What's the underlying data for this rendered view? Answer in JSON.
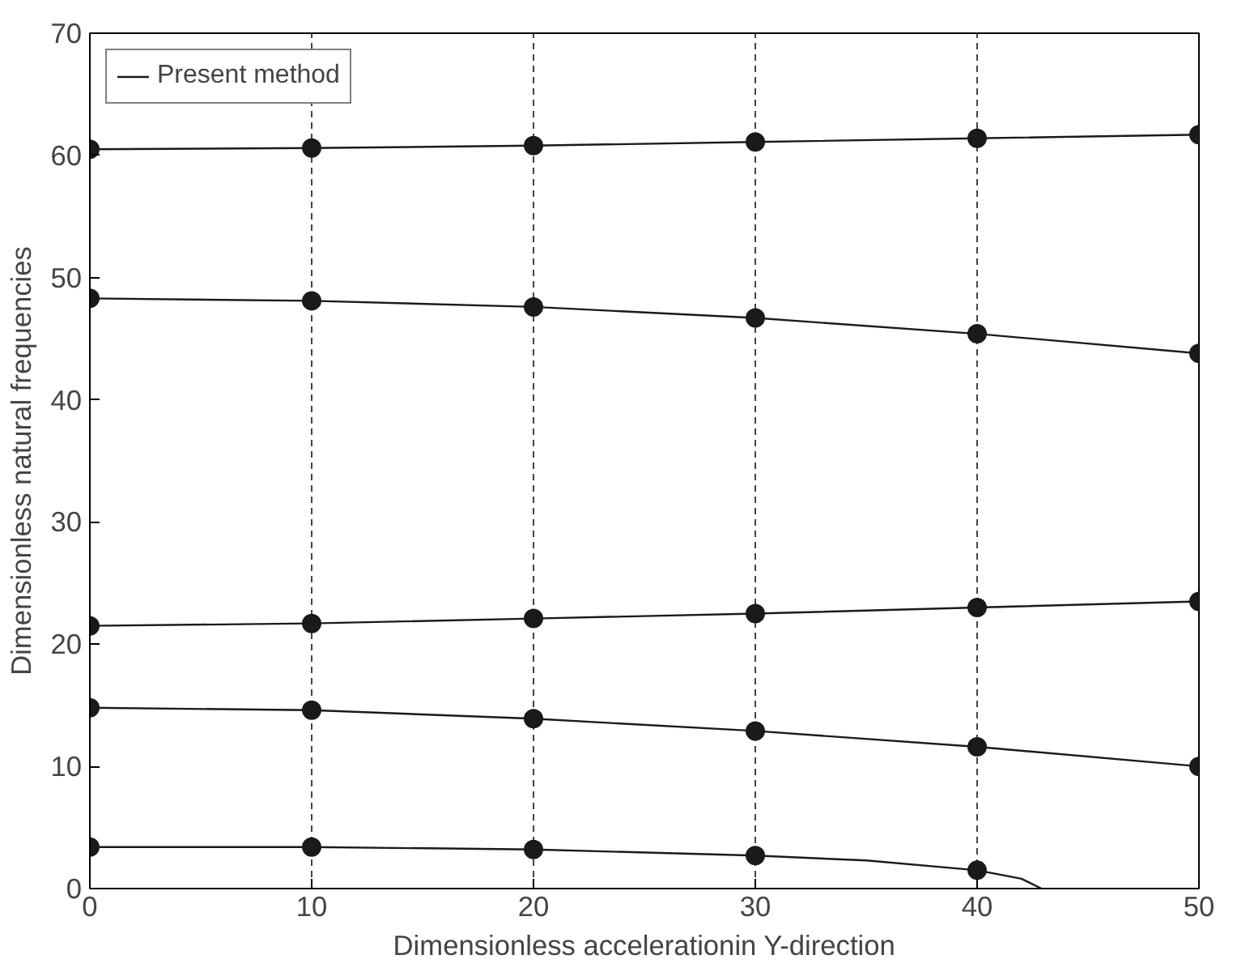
{
  "chart_data": {
    "type": "line",
    "xlabel": "Dimensionless accelerationin Y-direction",
    "ylabel": "Dimensionless natural frequencies",
    "xlim": [
      0,
      50
    ],
    "ylim": [
      0,
      70
    ],
    "xticks": [
      0,
      10,
      20,
      30,
      40,
      50
    ],
    "yticks": [
      0,
      10,
      20,
      30,
      40,
      50,
      60,
      70
    ],
    "grid": "x",
    "legend": "top left",
    "series": [
      {
        "type": "scatter",
        "marker": "circle",
        "color": "#1a1a1a",
        "x": [
          0,
          10,
          20,
          30,
          40
        ],
        "values": [
          3.4,
          3.4,
          3.2,
          2.7,
          1.5
        ]
      },
      {
        "type": "scatter",
        "marker": "circle",
        "color": "#1a1a1a",
        "x": [
          0,
          10,
          20,
          30,
          40,
          50
        ],
        "values": [
          14.8,
          14.6,
          13.9,
          12.9,
          11.6,
          10.0
        ]
      },
      {
        "type": "scatter",
        "marker": "circle",
        "color": "#1a1a1a",
        "x": [
          0,
          10,
          20,
          30,
          40,
          50
        ],
        "values": [
          21.5,
          21.7,
          22.1,
          22.5,
          23.0,
          23.5
        ]
      },
      {
        "type": "scatter",
        "marker": "circle",
        "color": "#1a1a1a",
        "x": [
          0,
          10,
          20,
          30,
          40,
          50
        ],
        "values": [
          48.3,
          48.1,
          47.6,
          46.7,
          45.4,
          43.8
        ]
      },
      {
        "type": "scatter",
        "marker": "circle",
        "color": "#1a1a1a",
        "x": [
          0,
          10,
          20,
          30,
          40,
          50
        ],
        "values": [
          60.5,
          60.6,
          60.8,
          61.1,
          61.4,
          61.7
        ]
      },
      {
        "name": "Present method",
        "color": "#1a1a1a",
        "line_style": "solid",
        "x": [
          0,
          10,
          20,
          30,
          35,
          40,
          42,
          42.9
        ],
        "values": [
          3.4,
          3.4,
          3.2,
          2.7,
          2.3,
          1.5,
          0.8,
          0
        ]
      },
      {
        "color": "#1a1a1a",
        "line_style": "solid",
        "x": [
          0,
          10,
          20,
          30,
          40,
          50
        ],
        "values": [
          14.8,
          14.6,
          13.9,
          12.9,
          11.6,
          10.0
        ]
      },
      {
        "color": "#1a1a1a",
        "line_style": "solid",
        "x": [
          0,
          10,
          20,
          30,
          40,
          50
        ],
        "values": [
          21.5,
          21.7,
          22.1,
          22.5,
          23.0,
          23.5
        ]
      },
      {
        "color": "#1a1a1a",
        "line_style": "solid",
        "x": [
          0,
          10,
          20,
          30,
          40,
          50
        ],
        "values": [
          48.3,
          48.1,
          47.6,
          46.7,
          45.4,
          43.8
        ]
      },
      {
        "color": "#1a1a1a",
        "line_style": "solid",
        "x": [
          0,
          10,
          20,
          30,
          40,
          50
        ],
        "values": [
          60.5,
          60.6,
          60.8,
          61.1,
          61.4,
          61.7
        ]
      }
    ]
  }
}
